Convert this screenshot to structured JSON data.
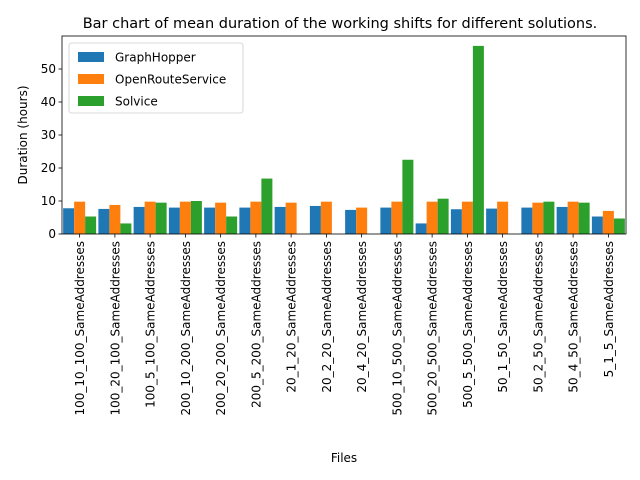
{
  "chart_data": {
    "type": "bar",
    "title": "Bar chart of mean duration of the working shifts for different solutions.",
    "xlabel": "Files",
    "ylabel": "Duration (hours)",
    "ylim": [
      0,
      60
    ],
    "yticks": [
      0,
      10,
      20,
      30,
      40,
      50
    ],
    "legend_position": "top-left",
    "grid": false,
    "categories": [
      "100_10_100_SameAddresses",
      "100_20_100_SameAddresses",
      "100_5_100_SameAddresses",
      "200_10_200_SameAddresses",
      "200_20_200_SameAddresses",
      "200_5_200_SameAddresses",
      "20_1_20_SameAddresses",
      "20_2_20_SameAddresses",
      "20_4_20_SameAddresses",
      "500_10_500_SameAddresses",
      "500_20_500_SameAddresses",
      "500_5_500_SameAddresses",
      "50_1_50_SameAddresses",
      "50_2_50_SameAddresses",
      "50_4_50_SameAddresses",
      "5_1_5_SameAddresses"
    ],
    "series": [
      {
        "name": "GraphHopper",
        "color": "#1f77b4",
        "values": [
          7.8,
          7.6,
          8.2,
          8.0,
          8.0,
          8.0,
          8.2,
          8.5,
          7.3,
          8.0,
          3.2,
          7.5,
          7.7,
          8.0,
          8.2,
          5.3
        ]
      },
      {
        "name": "OpenRouteService",
        "color": "#ff7f0e",
        "values": [
          9.8,
          8.8,
          9.8,
          9.8,
          9.5,
          9.8,
          9.5,
          9.8,
          8.0,
          9.8,
          9.8,
          9.8,
          9.8,
          9.5,
          9.8,
          7.0
        ]
      },
      {
        "name": "Solvice",
        "color": "#2ca02c",
        "values": [
          5.3,
          3.2,
          9.5,
          10.0,
          5.3,
          16.8,
          0,
          0,
          0,
          22.5,
          10.7,
          57.0,
          0,
          9.8,
          9.5,
          4.7
        ]
      }
    ]
  }
}
